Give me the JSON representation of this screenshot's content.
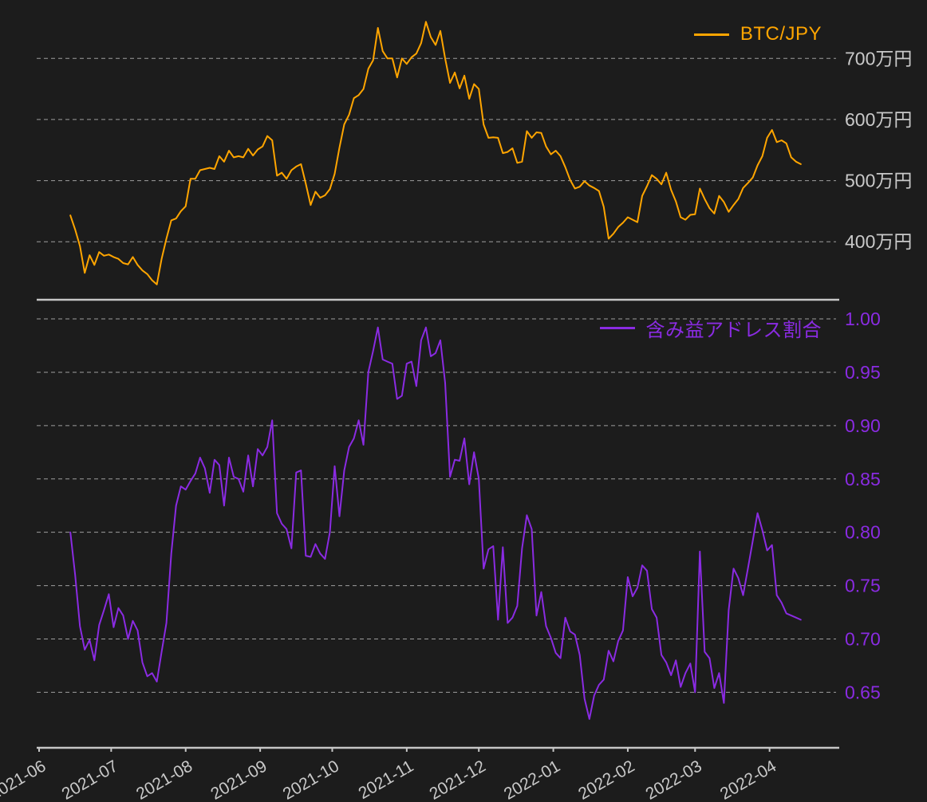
{
  "app": {
    "background": "#1c1c1c",
    "grid_color": "#b5b5b5",
    "axis_color": "#c6c6c6",
    "tick_label_color": "#c9c9c9"
  },
  "chart_data": [
    {
      "type": "line",
      "series_name": "BTC/JPY",
      "color": "#FFA500",
      "legend_position": "top-right",
      "grid": true,
      "ylabel": "",
      "xlabel": "",
      "ylim": [
        305,
        780
      ],
      "y_ticks": [
        {
          "value": 700,
          "label": "700万円"
        },
        {
          "value": 600,
          "label": "600万円"
        },
        {
          "value": 500,
          "label": "500万円"
        },
        {
          "value": 400,
          "label": "400万円"
        }
      ],
      "y_tick_color": "#c9c9c9",
      "x_start_date": "2021-06-14",
      "x_interval_days": 2,
      "unit": "万円",
      "values": [
        443,
        420,
        393,
        349,
        378,
        362,
        383,
        377,
        379,
        375,
        372,
        365,
        363,
        375,
        362,
        353,
        347,
        337,
        330,
        372,
        405,
        435,
        438,
        450,
        458,
        503,
        503,
        517,
        519,
        521,
        519,
        540,
        531,
        549,
        538,
        540,
        538,
        552,
        541,
        551,
        556,
        573,
        566,
        508,
        513,
        503,
        517,
        523,
        527,
        495,
        460,
        482,
        472,
        476,
        486,
        511,
        554,
        592,
        608,
        635,
        640,
        650,
        683,
        697,
        750,
        712,
        700,
        700,
        669,
        700,
        691,
        702,
        708,
        725,
        760,
        735,
        722,
        745,
        700,
        660,
        677,
        651,
        672,
        634,
        658,
        650,
        592,
        570,
        571,
        570,
        545,
        547,
        553,
        529,
        531,
        581,
        570,
        579,
        578,
        556,
        543,
        549,
        540,
        522,
        501,
        487,
        490,
        499,
        492,
        488,
        483,
        457,
        405,
        413,
        424,
        431,
        440,
        436,
        432,
        475,
        491,
        509,
        503,
        494,
        513,
        485,
        466,
        440,
        436,
        444,
        445,
        487,
        470,
        455,
        446,
        475,
        465,
        449,
        460,
        470,
        488,
        496,
        505,
        525,
        540,
        570,
        583,
        563,
        566,
        561,
        538,
        531,
        527
      ]
    },
    {
      "type": "line",
      "series_name": "含み益アドレス割合",
      "color": "#8A2BE2",
      "legend_position": "top-right",
      "grid": true,
      "ylabel": "",
      "xlabel": "",
      "ylim": [
        0.598,
        1.0075
      ],
      "y_ticks": [
        {
          "value": 1.0,
          "label": "1.00"
        },
        {
          "value": 0.95,
          "label": "0.95"
        },
        {
          "value": 0.9,
          "label": "0.90"
        },
        {
          "value": 0.85,
          "label": "0.85"
        },
        {
          "value": 0.8,
          "label": "0.80"
        },
        {
          "value": 0.75,
          "label": "0.75"
        },
        {
          "value": 0.7,
          "label": "0.70"
        },
        {
          "value": 0.65,
          "label": "0.65"
        }
      ],
      "y_tick_color": "#8A2BE2",
      "x_start_date": "2021-06-14",
      "x_interval_days": 2,
      "xlim": [
        "2021-05-31",
        "2022-04-30"
      ],
      "x_tick_labels": [
        "2021-06",
        "2021-07",
        "2021-08",
        "2021-09",
        "2021-10",
        "2021-11",
        "2021-12",
        "2022-01",
        "2022-02",
        "2022-03",
        "2022-04"
      ],
      "values": [
        0.8,
        0.76,
        0.712,
        0.69,
        0.699,
        0.68,
        0.713,
        0.727,
        0.742,
        0.711,
        0.729,
        0.722,
        0.7,
        0.717,
        0.708,
        0.678,
        0.665,
        0.668,
        0.66,
        0.688,
        0.715,
        0.78,
        0.825,
        0.843,
        0.84,
        0.848,
        0.855,
        0.87,
        0.86,
        0.837,
        0.868,
        0.863,
        0.825,
        0.87,
        0.852,
        0.85,
        0.838,
        0.872,
        0.843,
        0.878,
        0.872,
        0.88,
        0.905,
        0.818,
        0.808,
        0.803,
        0.785,
        0.856,
        0.858,
        0.778,
        0.777,
        0.789,
        0.78,
        0.775,
        0.8,
        0.862,
        0.815,
        0.858,
        0.88,
        0.888,
        0.905,
        0.882,
        0.95,
        0.97,
        0.992,
        0.962,
        0.96,
        0.958,
        0.925,
        0.928,
        0.958,
        0.96,
        0.937,
        0.98,
        0.992,
        0.965,
        0.968,
        0.98,
        0.94,
        0.852,
        0.868,
        0.867,
        0.888,
        0.845,
        0.875,
        0.85,
        0.766,
        0.784,
        0.787,
        0.718,
        0.786,
        0.715,
        0.72,
        0.731,
        0.785,
        0.816,
        0.803,
        0.722,
        0.744,
        0.712,
        0.701,
        0.687,
        0.682,
        0.72,
        0.707,
        0.704,
        0.685,
        0.644,
        0.625,
        0.647,
        0.657,
        0.662,
        0.689,
        0.679,
        0.698,
        0.708,
        0.758,
        0.74,
        0.748,
        0.769,
        0.764,
        0.728,
        0.72,
        0.685,
        0.678,
        0.666,
        0.68,
        0.655,
        0.668,
        0.677,
        0.65,
        0.782,
        0.688,
        0.682,
        0.654,
        0.668,
        0.64,
        0.727,
        0.766,
        0.757,
        0.741,
        0.766,
        0.792,
        0.818,
        0.802,
        0.783,
        0.788,
        0.741,
        0.734,
        0.724,
        0.722,
        0.72,
        0.718
      ]
    }
  ]
}
